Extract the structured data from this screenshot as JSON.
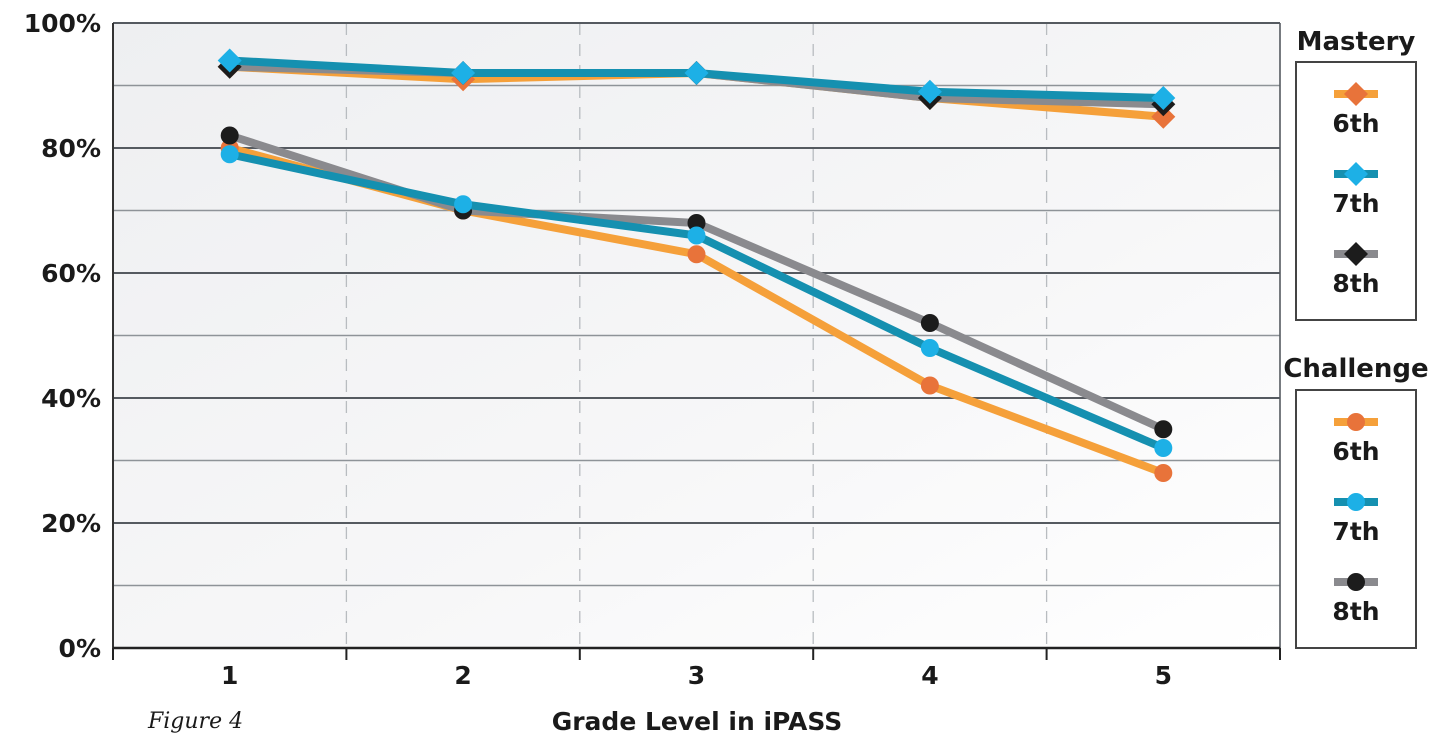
{
  "chart_data": {
    "type": "line",
    "xlabel": "Grade Level in iPASS",
    "ylabel": "",
    "caption": "Figure 4",
    "categories": [
      "1",
      "2",
      "3",
      "4",
      "5"
    ],
    "ylim": [
      0,
      100
    ],
    "yticks": [
      "0%",
      "20%",
      "40%",
      "60%",
      "80%",
      "100%"
    ],
    "grid": true,
    "legend_position": "right",
    "groups": [
      {
        "title": "Mastery",
        "marker": "diamond",
        "series": [
          {
            "name": "6th",
            "values": [
              93,
              91,
              92,
              88,
              85
            ],
            "line_color": "#f5a03a",
            "marker_color": "#e8733a"
          },
          {
            "name": "7th",
            "values": [
              94,
              92,
              92,
              89,
              88
            ],
            "line_color": "#1590b0",
            "marker_color": "#1db0e6"
          },
          {
            "name": "8th",
            "values": [
              93,
              92,
              92,
              88,
              87
            ],
            "line_color": "#8a8a8e",
            "marker_color": "#1c1c1c"
          }
        ]
      },
      {
        "title": "Challenge",
        "marker": "circle",
        "series": [
          {
            "name": "6th",
            "values": [
              80,
              70,
              63,
              42,
              28
            ],
            "line_color": "#f5a03a",
            "marker_color": "#e8733a"
          },
          {
            "name": "7th",
            "values": [
              79,
              71,
              66,
              48,
              32
            ],
            "line_color": "#1590b0",
            "marker_color": "#1db0e6"
          },
          {
            "name": "8th",
            "values": [
              82,
              70,
              68,
              52,
              35
            ],
            "line_color": "#8a8a8e",
            "marker_color": "#1c1c1c"
          }
        ]
      }
    ]
  }
}
